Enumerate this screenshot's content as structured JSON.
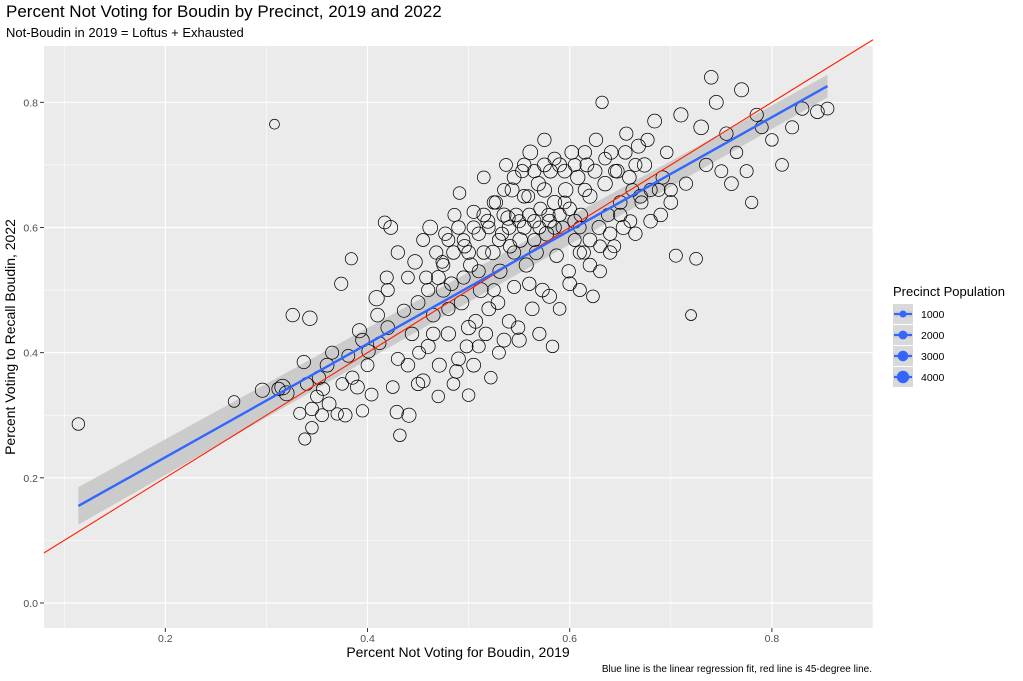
{
  "chart_data": {
    "type": "scatter",
    "title": "Percent Not Voting for Boudin by Precinct, 2019 and 2022",
    "subtitle": "Not-Boudin in 2019 = Loftus + Exhausted",
    "xlabel": "Percent Not Voting for Boudin, 2019",
    "ylabel": "Percent Voting to Recall Boudin, 2022",
    "caption": "Blue line is the linear regression fit, red line is 45-degree line.",
    "xlim": [
      0.08,
      0.9
    ],
    "ylim": [
      -0.04,
      0.89
    ],
    "x_ticks": [
      0.2,
      0.4,
      0.6,
      0.8
    ],
    "x_tick_labels": [
      "0.2",
      "0.4",
      "0.6",
      "0.8"
    ],
    "y_ticks": [
      0.0,
      0.2,
      0.4,
      0.6,
      0.8
    ],
    "y_tick_labels": [
      "0.0",
      "0.2",
      "0.4",
      "0.6",
      "0.8"
    ],
    "grid": true,
    "colors": {
      "panel": "#ebebeb",
      "grid": "#ffffff",
      "point_stroke": "#000000",
      "regression": "#3366ff",
      "ribbon": "#c8c8c8",
      "identity": "#ff2200"
    },
    "regression_line": {
      "label": "linear regression fit",
      "x": [
        0.114,
        0.855
      ],
      "y": [
        0.155,
        0.826
      ],
      "ci_lower": [
        0.125,
        0.808
      ],
      "ci_upper": [
        0.185,
        0.844
      ]
    },
    "identity_line": {
      "label": "45-degree line",
      "x": [
        0.08,
        0.9
      ],
      "y": [
        0.08,
        0.9
      ]
    },
    "legend": {
      "title": "Precinct Population",
      "position": "right",
      "entries": [
        {
          "label": "1000",
          "value": 1000
        },
        {
          "label": "2000",
          "value": 2000
        },
        {
          "label": "3000",
          "value": 3000
        },
        {
          "label": "4000",
          "value": 4000
        }
      ]
    },
    "size_variable": "Precinct Population",
    "points": [
      [
        0.114,
        0.286,
        2000
      ],
      [
        0.308,
        0.765,
        800
      ],
      [
        0.268,
        0.322,
        1500
      ],
      [
        0.296,
        0.34,
        3000
      ],
      [
        0.316,
        0.345,
        4000
      ],
      [
        0.32,
        0.335,
        3500
      ],
      [
        0.312,
        0.342,
        2500
      ],
      [
        0.326,
        0.46,
        2500
      ],
      [
        0.337,
        0.385,
        2500
      ],
      [
        0.343,
        0.455,
        3200
      ],
      [
        0.333,
        0.303,
        1800
      ],
      [
        0.345,
        0.28,
        2000
      ],
      [
        0.338,
        0.262,
        1800
      ],
      [
        0.352,
        0.36,
        2500
      ],
      [
        0.355,
        0.3,
        2200
      ],
      [
        0.362,
        0.318,
        2800
      ],
      [
        0.356,
        0.342,
        2400
      ],
      [
        0.37,
        0.302,
        1900
      ],
      [
        0.374,
        0.51,
        2400
      ],
      [
        0.381,
        0.395,
        2200
      ],
      [
        0.384,
        0.55,
        1800
      ],
      [
        0.378,
        0.3,
        2600
      ],
      [
        0.39,
        0.345,
        2800
      ],
      [
        0.392,
        0.435,
        3000
      ],
      [
        0.395,
        0.307,
        1900
      ],
      [
        0.401,
        0.402,
        2500
      ],
      [
        0.404,
        0.333,
        2200
      ],
      [
        0.409,
        0.487,
        3800
      ],
      [
        0.412,
        0.415,
        2100
      ],
      [
        0.417,
        0.608,
        2200
      ],
      [
        0.419,
        0.52,
        2300
      ],
      [
        0.423,
        0.6,
        2800
      ],
      [
        0.425,
        0.345,
        2100
      ],
      [
        0.429,
        0.305,
        2500
      ],
      [
        0.432,
        0.268,
        2000
      ],
      [
        0.436,
        0.467,
        2400
      ],
      [
        0.441,
        0.3,
        3000
      ],
      [
        0.444,
        0.43,
        2600
      ],
      [
        0.447,
        0.545,
        3200
      ],
      [
        0.451,
        0.4,
        2200
      ],
      [
        0.455,
        0.355,
        2800
      ],
      [
        0.458,
        0.52,
        2300
      ],
      [
        0.462,
        0.6,
        3400
      ],
      [
        0.465,
        0.46,
        2700
      ],
      [
        0.468,
        0.56,
        2400
      ],
      [
        0.471,
        0.38,
        2900
      ],
      [
        0.474,
        0.545,
        2100
      ],
      [
        0.477,
        0.59,
        2500
      ],
      [
        0.48,
        0.43,
        3100
      ],
      [
        0.483,
        0.51,
        2700
      ],
      [
        0.486,
        0.62,
        2300
      ],
      [
        0.488,
        0.37,
        2600
      ],
      [
        0.491,
        0.655,
        2000
      ],
      [
        0.493,
        0.48,
        3300
      ],
      [
        0.496,
        0.57,
        2600
      ],
      [
        0.498,
        0.41,
        2200
      ],
      [
        0.5,
        0.332,
        2000
      ],
      [
        0.502,
        0.54,
        3000
      ],
      [
        0.505,
        0.625,
        2400
      ],
      [
        0.507,
        0.45,
        2800
      ],
      [
        0.51,
        0.59,
        2500
      ],
      [
        0.512,
        0.5,
        3500
      ],
      [
        0.515,
        0.68,
        2100
      ],
      [
        0.517,
        0.43,
        2600
      ],
      [
        0.519,
        0.61,
        2900
      ],
      [
        0.522,
        0.36,
        2000
      ],
      [
        0.524,
        0.56,
        3200
      ],
      [
        0.527,
        0.64,
        2500
      ],
      [
        0.529,
        0.48,
        2700
      ],
      [
        0.531,
        0.53,
        3000
      ],
      [
        0.533,
        0.59,
        2400
      ],
      [
        0.535,
        0.42,
        2800
      ],
      [
        0.537,
        0.7,
        2200
      ],
      [
        0.539,
        0.615,
        3100
      ],
      [
        0.541,
        0.57,
        2600
      ],
      [
        0.543,
        0.66,
        2900
      ],
      [
        0.545,
        0.505,
        2300
      ],
      [
        0.547,
        0.62,
        2700
      ],
      [
        0.549,
        0.44,
        2500
      ],
      [
        0.551,
        0.58,
        3300
      ],
      [
        0.553,
        0.69,
        2400
      ],
      [
        0.555,
        0.6,
        2800
      ],
      [
        0.557,
        0.54,
        3000
      ],
      [
        0.559,
        0.65,
        2200
      ],
      [
        0.561,
        0.72,
        3400
      ],
      [
        0.563,
        0.47,
        2600
      ],
      [
        0.565,
        0.61,
        2500
      ],
      [
        0.567,
        0.56,
        2900
      ],
      [
        0.569,
        0.67,
        3100
      ],
      [
        0.571,
        0.63,
        2300
      ],
      [
        0.573,
        0.5,
        2700
      ],
      [
        0.575,
        0.74,
        2500
      ],
      [
        0.577,
        0.59,
        3200
      ],
      [
        0.579,
        0.62,
        2400
      ],
      [
        0.581,
        0.69,
        2800
      ],
      [
        0.583,
        0.41,
        2000
      ],
      [
        0.585,
        0.64,
        3000
      ],
      [
        0.587,
        0.555,
        2600
      ],
      [
        0.59,
        0.7,
        2900
      ],
      [
        0.593,
        0.6,
        2300
      ],
      [
        0.596,
        0.66,
        3300
      ],
      [
        0.599,
        0.53,
        2500
      ],
      [
        0.602,
        0.72,
        2700
      ],
      [
        0.605,
        0.58,
        2200
      ],
      [
        0.608,
        0.68,
        3100
      ],
      [
        0.611,
        0.62,
        2600
      ],
      [
        0.614,
        0.56,
        2400
      ],
      [
        0.617,
        0.7,
        2800
      ],
      [
        0.62,
        0.65,
        3000
      ],
      [
        0.623,
        0.49,
        2100
      ],
      [
        0.626,
        0.74,
        2500
      ],
      [
        0.629,
        0.6,
        2900
      ],
      [
        0.632,
        0.8,
        1900
      ],
      [
        0.635,
        0.67,
        3200
      ],
      [
        0.638,
        0.62,
        2400
      ],
      [
        0.641,
        0.72,
        2700
      ],
      [
        0.644,
        0.57,
        2300
      ],
      [
        0.647,
        0.69,
        2800
      ],
      [
        0.65,
        0.64,
        2600
      ],
      [
        0.653,
        0.6,
        3000
      ],
      [
        0.656,
        0.75,
        2400
      ],
      [
        0.659,
        0.68,
        2700
      ],
      [
        0.662,
        0.66,
        2200
      ],
      [
        0.665,
        0.59,
        2500
      ],
      [
        0.668,
        0.73,
        2900
      ],
      [
        0.671,
        0.64,
        2300
      ],
      [
        0.674,
        0.7,
        3100
      ],
      [
        0.677,
        0.74,
        2400
      ],
      [
        0.68,
        0.61,
        2600
      ],
      [
        0.684,
        0.77,
        2800
      ],
      [
        0.688,
        0.66,
        2200
      ],
      [
        0.692,
        0.68,
        2500
      ],
      [
        0.696,
        0.72,
        2000
      ],
      [
        0.7,
        0.64,
        2700
      ],
      [
        0.705,
        0.555,
        2300
      ],
      [
        0.71,
        0.78,
        3000
      ],
      [
        0.715,
        0.67,
        2400
      ],
      [
        0.72,
        0.46,
        1200
      ],
      [
        0.725,
        0.55,
        2100
      ],
      [
        0.73,
        0.76,
        3300
      ],
      [
        0.735,
        0.7,
        2500
      ],
      [
        0.74,
        0.84,
        2600
      ],
      [
        0.745,
        0.8,
        2800
      ],
      [
        0.75,
        0.69,
        2200
      ],
      [
        0.755,
        0.75,
        2500
      ],
      [
        0.76,
        0.67,
        2700
      ],
      [
        0.765,
        0.72,
        2000
      ],
      [
        0.77,
        0.82,
        2900
      ],
      [
        0.775,
        0.69,
        2300
      ],
      [
        0.78,
        0.64,
        1900
      ],
      [
        0.785,
        0.78,
        2400
      ],
      [
        0.79,
        0.76,
        2200
      ],
      [
        0.8,
        0.74,
        2000
      ],
      [
        0.81,
        0.7,
        2100
      ],
      [
        0.82,
        0.76,
        2300
      ],
      [
        0.83,
        0.79,
        2500
      ],
      [
        0.845,
        0.785,
        2700
      ],
      [
        0.855,
        0.79,
        2200
      ],
      [
        0.44,
        0.38,
        2600
      ],
      [
        0.46,
        0.41,
        2900
      ],
      [
        0.47,
        0.33,
        2000
      ],
      [
        0.48,
        0.47,
        2400
      ],
      [
        0.49,
        0.39,
        2700
      ],
      [
        0.5,
        0.44,
        3100
      ],
      [
        0.51,
        0.41,
        2300
      ],
      [
        0.52,
        0.47,
        2800
      ],
      [
        0.53,
        0.4,
        2200
      ],
      [
        0.54,
        0.45,
        2600
      ],
      [
        0.55,
        0.42,
        3000
      ],
      [
        0.56,
        0.51,
        2500
      ],
      [
        0.57,
        0.43,
        2400
      ],
      [
        0.58,
        0.49,
        2900
      ],
      [
        0.59,
        0.47,
        2100
      ],
      [
        0.6,
        0.51,
        2700
      ],
      [
        0.61,
        0.5,
        2300
      ],
      [
        0.62,
        0.54,
        2600
      ],
      [
        0.63,
        0.53,
        2200
      ],
      [
        0.64,
        0.56,
        2500
      ],
      [
        0.42,
        0.44,
        2700
      ],
      [
        0.43,
        0.39,
        2300
      ],
      [
        0.45,
        0.35,
        2500
      ],
      [
        0.455,
        0.58,
        2200
      ],
      [
        0.465,
        0.43,
        2600
      ],
      [
        0.475,
        0.5,
        3000
      ],
      [
        0.485,
        0.35,
        2100
      ],
      [
        0.495,
        0.52,
        2400
      ],
      [
        0.505,
        0.38,
        2800
      ],
      [
        0.515,
        0.56,
        2600
      ],
      [
        0.525,
        0.5,
        2200
      ],
      [
        0.535,
        0.62,
        2900
      ],
      [
        0.545,
        0.56,
        2400
      ],
      [
        0.555,
        0.65,
        2700
      ],
      [
        0.565,
        0.58,
        2300
      ],
      [
        0.575,
        0.66,
        3100
      ],
      [
        0.585,
        0.6,
        2600
      ],
      [
        0.595,
        0.64,
        2200
      ],
      [
        0.605,
        0.61,
        2800
      ],
      [
        0.615,
        0.66,
        2500
      ],
      [
        0.52,
        0.6,
        2100
      ],
      [
        0.53,
        0.58,
        2400
      ],
      [
        0.54,
        0.6,
        2700
      ],
      [
        0.55,
        0.61,
        2300
      ],
      [
        0.56,
        0.62,
        2600
      ],
      [
        0.57,
        0.6,
        2200
      ],
      [
        0.58,
        0.61,
        2800
      ],
      [
        0.59,
        0.62,
        2400
      ],
      [
        0.6,
        0.63,
        2500
      ],
      [
        0.61,
        0.6,
        2100
      ],
      [
        0.5,
        0.56,
        2700
      ],
      [
        0.51,
        0.53,
        2300
      ],
      [
        0.49,
        0.6,
        2600
      ],
      [
        0.48,
        0.58,
        2200
      ],
      [
        0.47,
        0.52,
        2900
      ],
      [
        0.46,
        0.5,
        2400
      ],
      [
        0.45,
        0.48,
        2800
      ],
      [
        0.44,
        0.52,
        2100
      ],
      [
        0.43,
        0.56,
        2500
      ],
      [
        0.42,
        0.5,
        2300
      ],
      [
        0.41,
        0.46,
        2700
      ],
      [
        0.4,
        0.38,
        2200
      ],
      [
        0.395,
        0.42,
        2600
      ],
      [
        0.385,
        0.36,
        2400
      ],
      [
        0.375,
        0.35,
        2000
      ],
      [
        0.365,
        0.4,
        2300
      ],
      [
        0.36,
        0.38,
        2800
      ],
      [
        0.35,
        0.33,
        2100
      ],
      [
        0.345,
        0.31,
        2500
      ],
      [
        0.34,
        0.35,
        2200
      ],
      [
        0.555,
        0.7,
        2600
      ],
      [
        0.565,
        0.69,
        2400
      ],
      [
        0.575,
        0.7,
        2800
      ],
      [
        0.585,
        0.71,
        2300
      ],
      [
        0.595,
        0.69,
        2700
      ],
      [
        0.605,
        0.7,
        2200
      ],
      [
        0.615,
        0.72,
        2500
      ],
      [
        0.625,
        0.69,
        2900
      ],
      [
        0.635,
        0.71,
        2100
      ],
      [
        0.645,
        0.69,
        2400
      ],
      [
        0.655,
        0.72,
        2600
      ],
      [
        0.665,
        0.7,
        2300
      ],
      [
        0.545,
        0.68,
        2800
      ],
      [
        0.535,
        0.66,
        2200
      ],
      [
        0.525,
        0.64,
        2500
      ],
      [
        0.515,
        0.62,
        2700
      ],
      [
        0.505,
        0.6,
        2400
      ],
      [
        0.495,
        0.58,
        2100
      ],
      [
        0.485,
        0.56,
        2600
      ],
      [
        0.475,
        0.54,
        2300
      ],
      [
        0.65,
        0.62,
        2500
      ],
      [
        0.66,
        0.61,
        2200
      ],
      [
        0.67,
        0.65,
        2800
      ],
      [
        0.68,
        0.66,
        2400
      ],
      [
        0.69,
        0.62,
        2600
      ],
      [
        0.7,
        0.66,
        2300
      ],
      [
        0.62,
        0.58,
        2700
      ],
      [
        0.63,
        0.57,
        2100
      ],
      [
        0.64,
        0.59,
        2500
      ],
      [
        0.61,
        0.56,
        2400
      ]
    ]
  }
}
